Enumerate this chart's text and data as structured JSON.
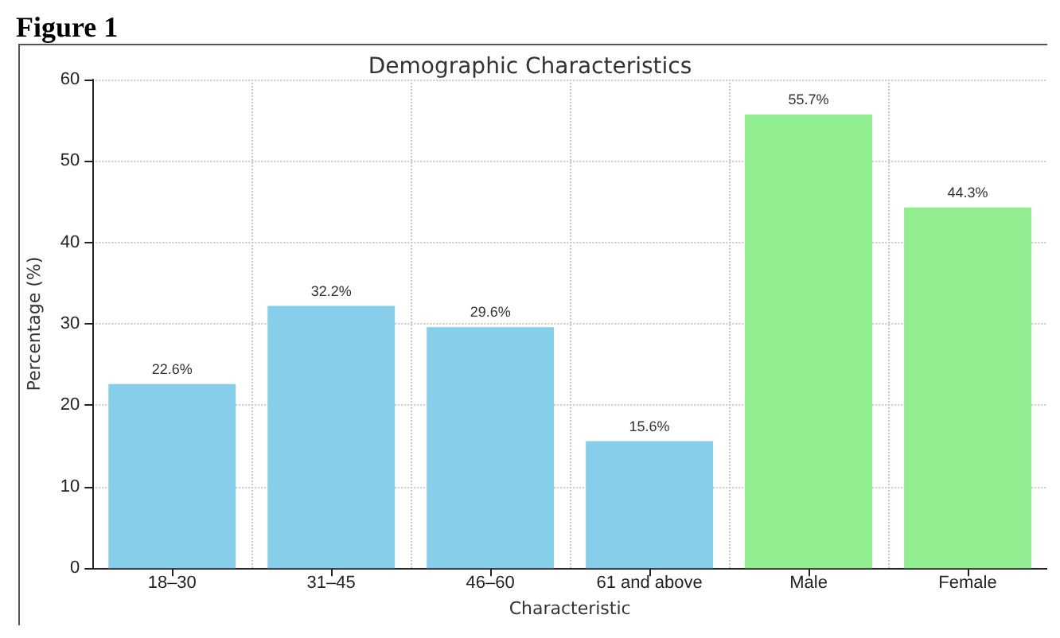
{
  "chart_data": {
    "type": "bar",
    "title": "Demographic Characteristics",
    "xlabel": "Characteristic",
    "ylabel": "Percentage (%)",
    "annotations": [
      "Figure 1"
    ],
    "categories": [
      "18–30",
      "31–45",
      "46–60",
      "61 and above",
      "Male",
      "Female"
    ],
    "values": [
      22.6,
      32.2,
      29.6,
      15.6,
      55.7,
      44.3
    ],
    "colors": [
      "#87ceeb",
      "#87ceeb",
      "#87ceeb",
      "#87ceeb",
      "#90ee90",
      "#90ee90"
    ],
    "value_labels": [
      "22.6%",
      "32.2%",
      "29.6%",
      "15.6%",
      "55.7%",
      "44.3%"
    ],
    "ylim": [
      0,
      60
    ],
    "yticks": [
      0,
      10,
      20,
      30,
      40,
      50,
      60
    ],
    "grid": true
  }
}
